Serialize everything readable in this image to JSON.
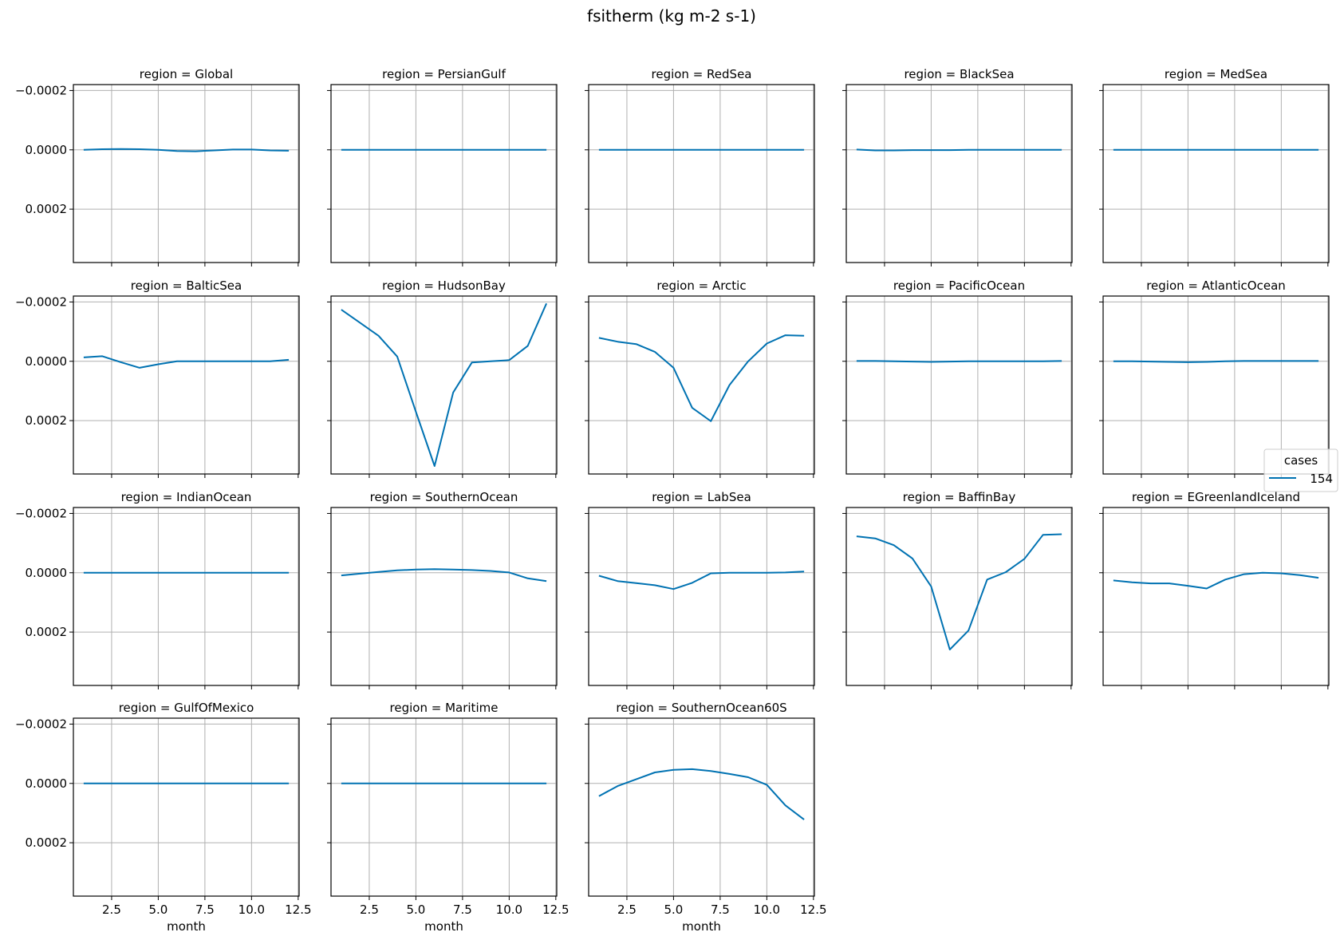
{
  "figure": {
    "title": "fsitherm (kg m-2 s-1)",
    "series_color": "#0072b2",
    "legend": {
      "title": "cases",
      "entries": [
        {
          "label": "154",
          "color": "#0072b2"
        }
      ]
    }
  },
  "chart_data": {
    "type": "line",
    "title": "fsitherm (kg m-2 s-1)",
    "facet_by": "region",
    "xlabel": "month",
    "ylabel": "",
    "x": [
      1,
      2,
      3,
      4,
      5,
      6,
      7,
      8,
      9,
      10,
      11,
      12
    ],
    "xticks": [
      2.5,
      5.0,
      7.5,
      10.0,
      12.5
    ],
    "xtick_labels": [
      "2.5",
      "5.0",
      "7.5",
      "10.0",
      "12.5"
    ],
    "xlim": [
      0.45,
      12.55
    ],
    "yticks": [
      -0.0002,
      0.0,
      0.0002
    ],
    "ytick_labels": [
      "−0.0002",
      "0.0000",
      "0.0002"
    ],
    "ylim": [
      -0.00022,
      0.00038
    ],
    "y_inverted": true,
    "grid": true,
    "legend": {
      "title": "cases",
      "entries": [
        "154"
      ],
      "position": "right, between rows 2 and 3"
    },
    "panels": [
      {
        "region": "Global",
        "title": "region = Global",
        "values": [
          0.0,
          -2e-06,
          -3e-06,
          -2e-06,
          0.0,
          4e-06,
          5e-06,
          2e-06,
          -1e-06,
          -1e-06,
          2e-06,
          3e-06
        ]
      },
      {
        "region": "PersianGulf",
        "title": "region = PersianGulf",
        "values": [
          0,
          0,
          0,
          0,
          0,
          0,
          0,
          0,
          0,
          0,
          0,
          0
        ]
      },
      {
        "region": "RedSea",
        "title": "region = RedSea",
        "values": [
          0,
          0,
          0,
          0,
          0,
          0,
          0,
          0,
          0,
          0,
          0,
          0
        ]
      },
      {
        "region": "BlackSea",
        "title": "region = BlackSea",
        "values": [
          -1e-06,
          2e-06,
          2e-06,
          1e-06,
          1e-06,
          1e-06,
          0.0,
          0.0,
          0.0,
          0.0,
          0.0,
          0.0
        ]
      },
      {
        "region": "MedSea",
        "title": "region = MedSea",
        "values": [
          0,
          0,
          0,
          0,
          0,
          0,
          0,
          0,
          0,
          0,
          0,
          0
        ]
      },
      {
        "region": "BalticSea",
        "title": "region = BalticSea",
        "values": [
          -1.3e-05,
          -1.7e-05,
          3e-06,
          2.2e-05,
          1e-05,
          0.0,
          0.0,
          0.0,
          0.0,
          0.0,
          0.0,
          -5e-06
        ]
      },
      {
        "region": "HudsonBay",
        "title": "region = HudsonBay",
        "values": [
          -0.000174,
          -0.00013,
          -8.6e-05,
          -1.6e-05,
          0.00017,
          0.000353,
          0.000105,
          4e-06,
          0.0,
          -4e-06,
          -5.2e-05,
          -0.000195
        ]
      },
      {
        "region": "Arctic",
        "title": "region = Arctic",
        "values": [
          -7.9e-05,
          -6.6e-05,
          -5.8e-05,
          -3.2e-05,
          2.2e-05,
          0.000157,
          0.000202,
          8e-05,
          0.0,
          -6e-05,
          -8.8e-05,
          -8.6e-05
        ]
      },
      {
        "region": "PacificOcean",
        "title": "region = PacificOcean",
        "values": [
          -1e-06,
          -1e-06,
          0.0,
          1e-06,
          2e-06,
          1e-06,
          0.0,
          0.0,
          0.0,
          0.0,
          0.0,
          -1e-06
        ]
      },
      {
        "region": "AtlanticOcean",
        "title": "region = AtlanticOcean",
        "values": [
          0.0,
          0.0,
          1e-06,
          2e-06,
          3e-06,
          2e-06,
          0.0,
          -1e-06,
          -1e-06,
          -1e-06,
          -1e-06,
          -1e-06
        ]
      },
      {
        "region": "IndianOcean",
        "title": "region = IndianOcean",
        "values": [
          0,
          0,
          0,
          0,
          0,
          0,
          0,
          0,
          0,
          0,
          0,
          0
        ]
      },
      {
        "region": "SouthernOcean",
        "title": "region = SouthernOcean",
        "values": [
          9e-06,
          3e-06,
          -3e-06,
          -8e-06,
          -1.1e-05,
          -1.2e-05,
          -1.1e-05,
          -9e-06,
          -6e-06,
          -1e-06,
          1.9e-05,
          2.8e-05
        ]
      },
      {
        "region": "LabSea",
        "title": "region = LabSea",
        "values": [
          1e-05,
          2.8e-05,
          3.5e-05,
          4.2e-05,
          5.5e-05,
          3.4e-05,
          2e-06,
          0.0,
          0.0,
          0.0,
          -1e-06,
          -4e-06
        ]
      },
      {
        "region": "BaffinBay",
        "title": "region = BaffinBay",
        "values": [
          -0.000123,
          -0.000116,
          -9.3e-05,
          -4.8e-05,
          4.6e-05,
          0.000259,
          0.000195,
          2.3e-05,
          -2e-06,
          -4.7e-05,
          -0.000128,
          -0.00013
        ]
      },
      {
        "region": "EGreenlandIceland",
        "title": "region = EGreenlandIceland",
        "values": [
          2.6e-05,
          3.2e-05,
          3.6e-05,
          3.6e-05,
          4.4e-05,
          5.3e-05,
          2.3e-05,
          5e-06,
          0.0,
          2e-06,
          8e-06,
          1.7e-05
        ]
      },
      {
        "region": "GulfOfMexico",
        "title": "region = GulfOfMexico",
        "values": [
          0,
          0,
          0,
          0,
          0,
          0,
          0,
          0,
          0,
          0,
          0,
          0
        ]
      },
      {
        "region": "Maritime",
        "title": "region = Maritime",
        "values": [
          0,
          0,
          0,
          0,
          0,
          0,
          0,
          0,
          0,
          0,
          0,
          0
        ]
      },
      {
        "region": "SouthernOcean60S",
        "title": "region = SouthernOcean60S",
        "values": [
          4.3e-05,
          9e-06,
          -1.4e-05,
          -3.7e-05,
          -4.6e-05,
          -4.8e-05,
          -4.2e-05,
          -3.2e-05,
          -2.1e-05,
          5e-06,
          7.4e-05,
          0.000122
        ]
      }
    ]
  }
}
